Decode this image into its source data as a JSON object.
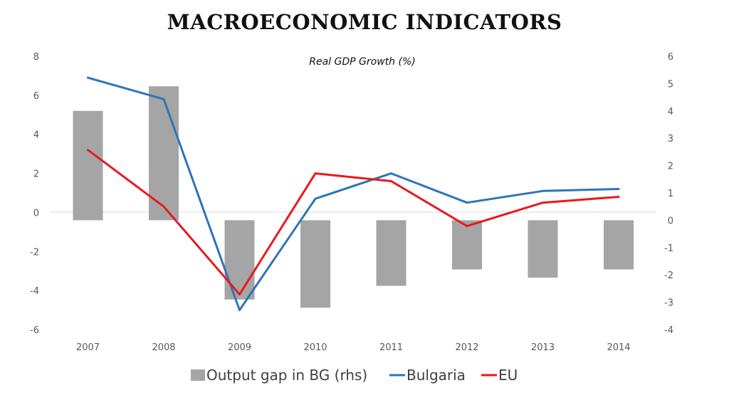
{
  "slide": {
    "title": "MACROECONOMIC INDICATORS"
  },
  "chart_data": {
    "type": "bar",
    "title": "Real GDP Growth (%)",
    "categories": [
      "2007",
      "2008",
      "2009",
      "2010",
      "2011",
      "2012",
      "2013",
      "2014"
    ],
    "series": [
      {
        "name": "Output gap in BG (rhs)",
        "type": "bar",
        "axis": "right",
        "color": "#a5a5a5",
        "values": [
          4.0,
          4.9,
          -2.9,
          -3.2,
          -2.4,
          -1.8,
          -2.1,
          -1.8
        ]
      },
      {
        "name": "Bulgaria",
        "type": "line",
        "axis": "left",
        "color": "#2e75b6",
        "values": [
          6.9,
          5.8,
          -5.0,
          0.7,
          2.0,
          0.5,
          1.1,
          1.2
        ]
      },
      {
        "name": "EU",
        "type": "line",
        "axis": "left",
        "color": "#e8191c",
        "values": [
          3.2,
          0.3,
          -4.2,
          2.0,
          1.6,
          -0.7,
          0.5,
          0.8
        ]
      }
    ],
    "y_left": {
      "range": [
        -6,
        8
      ],
      "ticks": [
        "8",
        "6",
        "4",
        "2",
        "0",
        "-2",
        "-4",
        "-6"
      ]
    },
    "y_right": {
      "range": [
        -4,
        6
      ],
      "ticks": [
        "6",
        "5",
        "4",
        "3",
        "2",
        "1",
        "0",
        "-1",
        "-2",
        "-3",
        "-4"
      ]
    },
    "grid": false,
    "zero_line": true,
    "legend_position": "bottom"
  }
}
